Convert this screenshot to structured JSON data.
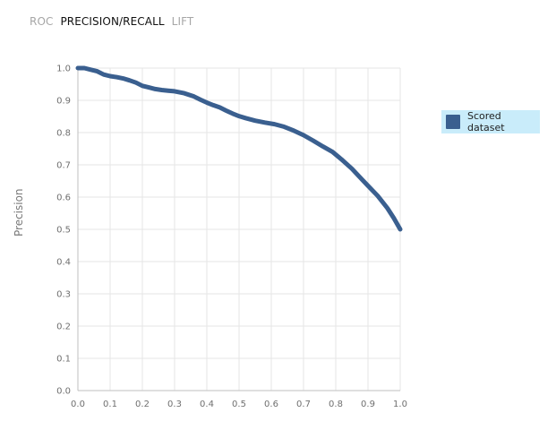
{
  "tabs": [
    {
      "label": "ROC",
      "active": false
    },
    {
      "label": "PRECISION/RECALL",
      "active": true
    },
    {
      "label": "LIFT",
      "active": false
    }
  ],
  "chart_data": {
    "type": "line",
    "title": "",
    "xlabel": "",
    "ylabel": "Precision",
    "xlim": [
      0,
      1
    ],
    "ylim": [
      0,
      1
    ],
    "grid": true,
    "legend": {
      "placement": "right",
      "entries": [
        {
          "name": "Scored dataset",
          "color": "#3a5f8f"
        }
      ]
    },
    "x_ticks": [
      "0.0",
      "0.1",
      "0.2",
      "0.3",
      "0.4",
      "0.5",
      "0.6",
      "0.7",
      "0.8",
      "0.9",
      "1.0"
    ],
    "y_ticks": [
      "0.0",
      "0.1",
      "0.2",
      "0.3",
      "0.4",
      "0.5",
      "0.6",
      "0.7",
      "0.8",
      "0.9",
      "1.0"
    ],
    "series": [
      {
        "name": "Scored dataset",
        "color": "#3a5f8f",
        "x": [
          0.0,
          0.02,
          0.04,
          0.06,
          0.08,
          0.1,
          0.12,
          0.14,
          0.16,
          0.18,
          0.2,
          0.22,
          0.24,
          0.26,
          0.28,
          0.3,
          0.33,
          0.36,
          0.38,
          0.4,
          0.42,
          0.44,
          0.46,
          0.48,
          0.5,
          0.52,
          0.55,
          0.58,
          0.61,
          0.64,
          0.67,
          0.7,
          0.73,
          0.76,
          0.79,
          0.82,
          0.85,
          0.88,
          0.9,
          0.93,
          0.96,
          0.98,
          1.0
        ],
        "y": [
          1.0,
          1.0,
          0.995,
          0.99,
          0.98,
          0.975,
          0.972,
          0.968,
          0.962,
          0.955,
          0.945,
          0.94,
          0.935,
          0.932,
          0.93,
          0.928,
          0.922,
          0.912,
          0.902,
          0.893,
          0.885,
          0.878,
          0.868,
          0.859,
          0.851,
          0.845,
          0.837,
          0.831,
          0.826,
          0.818,
          0.806,
          0.792,
          0.775,
          0.757,
          0.74,
          0.715,
          0.688,
          0.656,
          0.635,
          0.604,
          0.566,
          0.535,
          0.5
        ]
      }
    ]
  }
}
